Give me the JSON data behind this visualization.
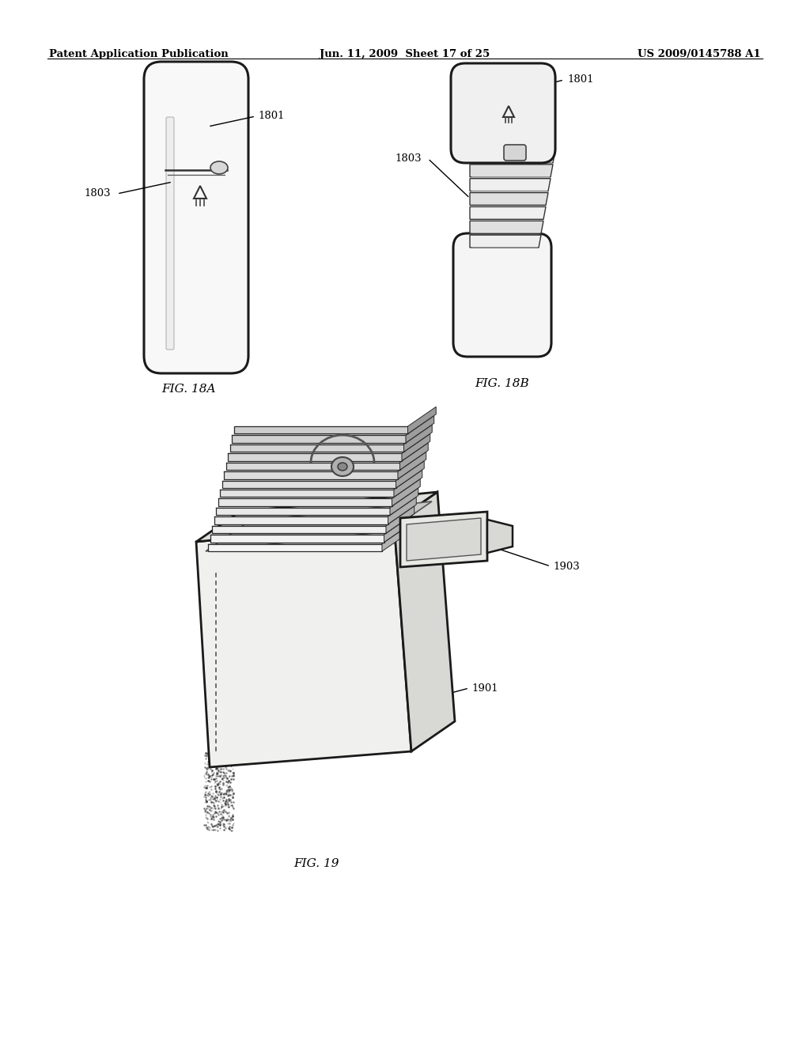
{
  "bg_color": "#ffffff",
  "header_left": "Patent Application Publication",
  "header_mid": "Jun. 11, 2009  Sheet 17 of 25",
  "header_right": "US 2009/0145788 A1",
  "fig18a_label": "FIG. 18A",
  "fig18b_label": "FIG. 18B",
  "fig19_label": "FIG. 19",
  "line_color": "#1a1a1a",
  "fill_light": "#f5f5f5",
  "fill_mid": "#e0e0e0",
  "fill_dark": "#c0c0c0"
}
